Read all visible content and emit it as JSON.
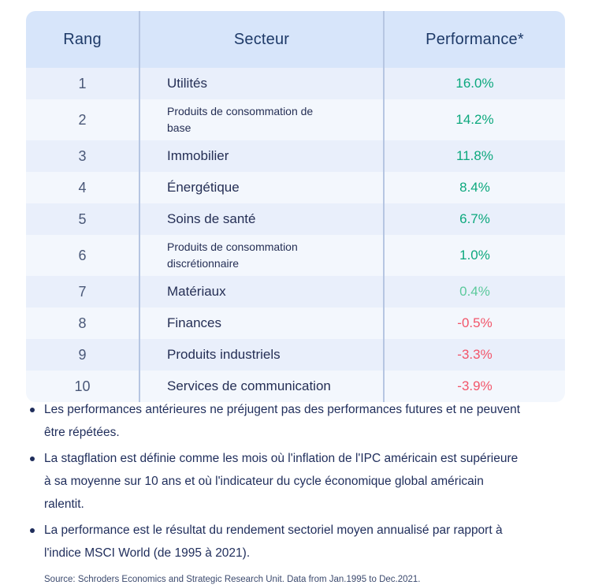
{
  "chart_data": {
    "type": "table",
    "columns": [
      "Rang",
      "Secteur",
      "Performance*"
    ],
    "rows": [
      [
        1,
        "Utilités",
        16.0
      ],
      [
        2,
        "Produits de consommation de base",
        14.2
      ],
      [
        3,
        "Immobilier",
        11.8
      ],
      [
        4,
        "Énergétique",
        8.4
      ],
      [
        5,
        "Soins de santé",
        6.7
      ],
      [
        6,
        "Produits de consommation discrétionnaire",
        1.0
      ],
      [
        7,
        "Matériaux",
        0.4
      ],
      [
        8,
        "Finances",
        -0.5
      ],
      [
        9,
        "Produits industriels",
        -3.3
      ],
      [
        10,
        "Services de communication",
        -3.9
      ]
    ],
    "units": "%",
    "legend_position": "none",
    "grid": false
  },
  "table": {
    "columns": [
      "Rang",
      "Secteur",
      "Performance*"
    ],
    "rows": [
      {
        "rank": "1",
        "sector": "Utilités",
        "performance": "16.0%",
        "tone": "green"
      },
      {
        "rank": "2",
        "sector": "Produits de consommation de\nbase",
        "performance": "14.2%",
        "tone": "green"
      },
      {
        "rank": "3",
        "sector": "Immobilier",
        "performance": "11.8%",
        "tone": "green"
      },
      {
        "rank": "4",
        "sector": "Énergétique",
        "performance": "8.4%",
        "tone": "green"
      },
      {
        "rank": "5",
        "sector": "Soins de santé",
        "performance": "6.7%",
        "tone": "green"
      },
      {
        "rank": "6",
        "sector": "Produits de consommation\ndiscrétionnaire",
        "performance": "1.0%",
        "tone": "green"
      },
      {
        "rank": "7",
        "sector": "Matériaux",
        "performance": "0.4%",
        "tone": "lightgreen"
      },
      {
        "rank": "8",
        "sector": "Finances",
        "performance": "-0.5%",
        "tone": "red"
      },
      {
        "rank": "9",
        "sector": "Produits industriels",
        "performance": "-3.3%",
        "tone": "red"
      },
      {
        "rank": "10",
        "sector": "Services de communication",
        "performance": "-3.9%",
        "tone": "red"
      }
    ]
  },
  "notes": [
    "Les performances antérieures ne préjugent pas des performances futures et ne peuvent\nêtre répétées.",
    "La stagflation est définie comme les mois où l'inflation de l'IPC américain est supérieure\nà sa moyenne sur 10 ans et où l'indicateur du cycle économique global américain\nralentit.",
    "La performance est le résultat du rendement sectoriel moyen annualisé par rapport à\nl'indice MSCI World (de 1995 à 2021)."
  ],
  "source": "Source: Schroders Economics and Strategic Research Unit. Data from Jan.1995 to Dec.2021.",
  "colors": {
    "header_bg": "#D7E5FA",
    "row_odd_bg": "#E9EFFB",
    "row_even_bg": "#F3F7FD",
    "divider": "#B6C6E2",
    "heading_text": "#1E3A68",
    "body_text": "#252F55",
    "positive": "#0CA87D",
    "positive_light": "#5CC99C",
    "negative": "#F2556A"
  }
}
